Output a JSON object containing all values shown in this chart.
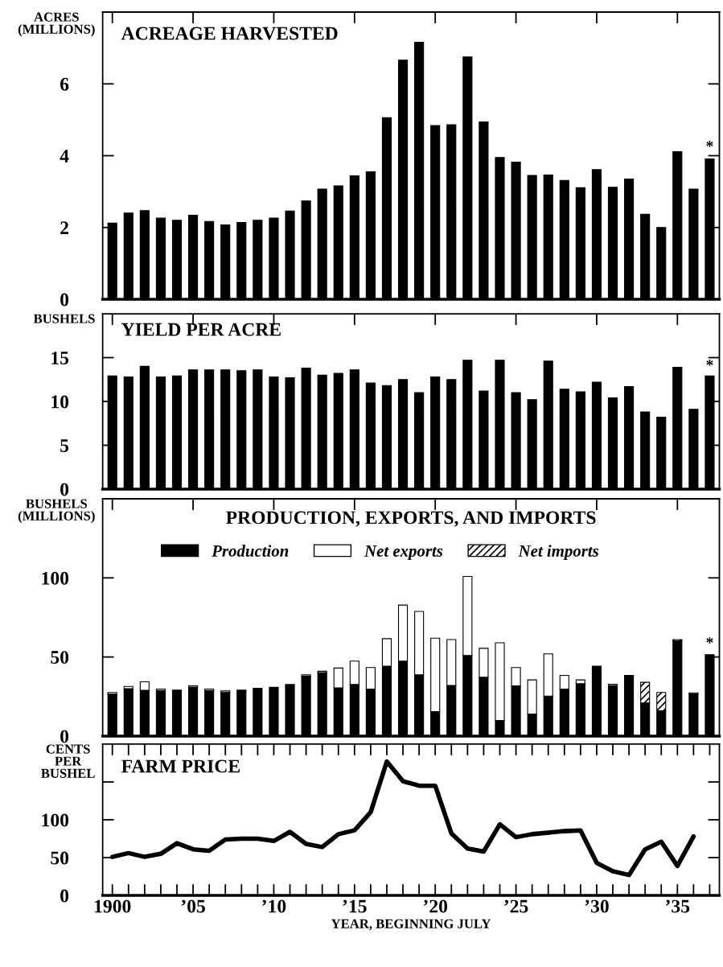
{
  "chart_data": [
    {
      "type": "bar",
      "title": "ACREAGE HARVESTED",
      "ylabel": "ACRES\n(MILLIONS)",
      "x": [
        1900,
        1901,
        1902,
        1903,
        1904,
        1905,
        1906,
        1907,
        1908,
        1909,
        1910,
        1911,
        1912,
        1913,
        1914,
        1915,
        1916,
        1917,
        1918,
        1919,
        1920,
        1921,
        1922,
        1923,
        1924,
        1925,
        1926,
        1927,
        1928,
        1929,
        1930,
        1931,
        1932,
        1933,
        1934,
        1935,
        1936,
        1937
      ],
      "series": [
        {
          "color": "#000000",
          "values": [
            2.12,
            2.4,
            2.47,
            2.26,
            2.2,
            2.34,
            2.17,
            2.07,
            2.14,
            2.2,
            2.26,
            2.46,
            2.74,
            3.07,
            3.16,
            3.44,
            3.55,
            5.06,
            6.66,
            7.16,
            4.84,
            4.86,
            6.75,
            4.94,
            3.95,
            3.82,
            3.45,
            3.46,
            3.31,
            3.11,
            3.61,
            3.12,
            3.35,
            2.37,
            2.0,
            4.11,
            3.07,
            3.91
          ]
        }
      ],
      "xlim": [
        1899.4,
        1937.6
      ],
      "xticks": [
        {
          "value": 1900,
          "label": null
        },
        {
          "value": 1905,
          "label": null
        },
        {
          "value": 1910,
          "label": null
        },
        {
          "value": 1915,
          "label": null
        },
        {
          "value": 1920,
          "label": null
        },
        {
          "value": 1925,
          "label": null
        },
        {
          "value": 1930,
          "label": null
        },
        {
          "value": 1935,
          "label": null
        }
      ],
      "ylim": [
        0,
        8
      ],
      "yticks": [
        0,
        2,
        4,
        6
      ],
      "tick_labels": "y",
      "grid": false,
      "legend": false,
      "annotations": [
        "*"
      ]
    },
    {
      "type": "bar",
      "title": "YIELD PER ACRE",
      "ylabel": "BUSHELS",
      "x": [
        1900,
        1901,
        1902,
        1903,
        1904,
        1905,
        1906,
        1907,
        1908,
        1909,
        1910,
        1911,
        1912,
        1913,
        1914,
        1915,
        1916,
        1917,
        1918,
        1919,
        1920,
        1921,
        1922,
        1923,
        1924,
        1925,
        1926,
        1927,
        1928,
        1929,
        1930,
        1931,
        1932,
        1933,
        1934,
        1935,
        1936,
        1937
      ],
      "series": [
        {
          "color": "#000000",
          "values": [
            12.9,
            12.8,
            14.0,
            12.8,
            12.9,
            13.6,
            13.6,
            13.6,
            13.5,
            13.6,
            12.8,
            12.7,
            13.8,
            13.0,
            13.2,
            13.6,
            12.1,
            11.8,
            12.5,
            11.0,
            12.8,
            12.5,
            14.7,
            11.2,
            14.7,
            11.0,
            10.2,
            14.6,
            11.4,
            11.1,
            12.2,
            10.4,
            11.7,
            8.8,
            8.2,
            13.9,
            9.1,
            12.9
          ]
        }
      ],
      "xlim": [
        1899.4,
        1937.6
      ],
      "xticks": [
        {
          "value": 1900,
          "label": null
        },
        {
          "value": 1905,
          "label": null
        },
        {
          "value": 1910,
          "label": null
        },
        {
          "value": 1915,
          "label": null
        },
        {
          "value": 1920,
          "label": null
        },
        {
          "value": 1925,
          "label": null
        },
        {
          "value": 1930,
          "label": null
        },
        {
          "value": 1935,
          "label": null
        }
      ],
      "ylim": [
        0,
        20
      ],
      "yticks": [
        0,
        5,
        10,
        15
      ],
      "tick_labels": "y",
      "grid": false,
      "legend": false,
      "annotations": [
        "*"
      ]
    },
    {
      "type": "bar",
      "stacked": true,
      "title": "PRODUCTION, EXPORTS, AND IMPORTS",
      "ylabel": "BUSHELS\n(MILLIONS)",
      "x": [
        1900,
        1901,
        1902,
        1903,
        1904,
        1905,
        1906,
        1907,
        1908,
        1909,
        1910,
        1911,
        1912,
        1913,
        1914,
        1915,
        1916,
        1917,
        1918,
        1919,
        1920,
        1921,
        1922,
        1923,
        1924,
        1925,
        1926,
        1927,
        1928,
        1929,
        1930,
        1931,
        1932,
        1933,
        1934,
        1935,
        1936,
        1937
      ],
      "series": [
        {
          "name": "Production",
          "color": "#000000",
          "values": [
            26.5,
            30,
            29,
            28.8,
            29.1,
            30.8,
            28.8,
            27.6,
            28.5,
            30.2,
            30.8,
            32,
            37.8,
            40.1,
            30.5,
            32.6,
            29.7,
            44.2,
            47.4,
            38.7,
            15.4,
            32,
            50.9,
            37.2,
            9.9,
            31.7,
            14,
            25.3,
            29.7,
            33.1,
            44.2,
            32,
            37.8,
            20.9,
            16,
            60.2,
            26.7,
            51.5
          ]
        },
        {
          "name": "Net exports",
          "color": "#ffffff",
          "values": [
            1.1,
            1.4,
            5.3,
            0.9,
            null,
            0.9,
            0.9,
            0.9,
            0.6,
            null,
            null,
            0.6,
            0.9,
            0.9,
            12.5,
            14.8,
            13.6,
            17.4,
            35.4,
            40.1,
            46.5,
            29,
            50,
            18.3,
            49.1,
            11.6,
            21.5,
            26.7,
            8.7,
            2.4,
            null,
            0.8,
            0.6,
            null,
            null,
            null,
            0.6,
            null
          ]
        },
        {
          "name": "Net imports",
          "color": "#000000",
          "values": [
            null,
            null,
            null,
            null,
            null,
            null,
            null,
            null,
            null,
            null,
            null,
            null,
            null,
            null,
            null,
            null,
            null,
            null,
            null,
            null,
            null,
            null,
            null,
            null,
            null,
            null,
            null,
            null,
            null,
            null,
            null,
            null,
            null,
            13.1,
            11.6,
            0.8,
            null,
            null
          ]
        }
      ],
      "xlim": [
        1899.4,
        1937.6
      ],
      "xticks": [
        {
          "value": 1900,
          "label": null
        },
        {
          "value": 1905,
          "label": null
        },
        {
          "value": 1910,
          "label": null
        },
        {
          "value": 1915,
          "label": null
        },
        {
          "value": 1920,
          "label": null
        },
        {
          "value": 1925,
          "label": null
        },
        {
          "value": 1930,
          "label": null
        },
        {
          "value": 1935,
          "label": null
        }
      ],
      "ylim": [
        0,
        150
      ],
      "yticks": [
        0,
        50,
        100
      ],
      "tick_labels": "y",
      "grid": false,
      "legend": "top",
      "annotations": [
        "*"
      ]
    },
    {
      "type": "line",
      "title": "FARM PRICE",
      "ylabel": "CENTS\nPER\nBUSHEL",
      "xlabel": "YEAR, BEGINNING JULY",
      "x": [
        1900,
        1901,
        1902,
        1903,
        1904,
        1905,
        1906,
        1907,
        1908,
        1909,
        1910,
        1911,
        1912,
        1913,
        1914,
        1915,
        1916,
        1917,
        1918,
        1919,
        1920,
        1921,
        1922,
        1923,
        1924,
        1925,
        1926,
        1927,
        1928,
        1929,
        1930,
        1931,
        1932,
        1933,
        1934,
        1935,
        1936
      ],
      "series": [
        {
          "color": "#000000",
          "values": [
            51,
            56,
            51,
            55,
            69,
            61,
            59,
            74,
            75,
            75,
            72,
            84,
            68,
            64,
            81,
            86,
            110,
            177,
            151,
            145,
            145,
            82,
            62,
            58,
            94,
            77,
            81,
            83,
            85,
            86,
            43,
            32,
            27,
            61,
            71,
            39,
            78
          ]
        }
      ],
      "xlim": [
        1899.4,
        1937.6
      ],
      "xticks": [
        {
          "value": 1900,
          "label": "1900"
        },
        {
          "value": 1901,
          "label": null
        },
        {
          "value": 1902,
          "label": null
        },
        {
          "value": 1903,
          "label": null
        },
        {
          "value": 1904,
          "label": null
        },
        {
          "value": 1905,
          "label": "’05"
        },
        {
          "value": 1906,
          "label": null
        },
        {
          "value": 1907,
          "label": null
        },
        {
          "value": 1908,
          "label": null
        },
        {
          "value": 1909,
          "label": null
        },
        {
          "value": 1910,
          "label": "’10"
        },
        {
          "value": 1911,
          "label": null
        },
        {
          "value": 1912,
          "label": null
        },
        {
          "value": 1913,
          "label": null
        },
        {
          "value": 1914,
          "label": null
        },
        {
          "value": 1915,
          "label": "’15"
        },
        {
          "value": 1916,
          "label": null
        },
        {
          "value": 1917,
          "label": null
        },
        {
          "value": 1918,
          "label": null
        },
        {
          "value": 1919,
          "label": null
        },
        {
          "value": 1920,
          "label": "’20"
        },
        {
          "value": 1921,
          "label": null
        },
        {
          "value": 1922,
          "label": null
        },
        {
          "value": 1923,
          "label": null
        },
        {
          "value": 1924,
          "label": null
        },
        {
          "value": 1925,
          "label": "’25"
        },
        {
          "value": 1926,
          "label": null
        },
        {
          "value": 1927,
          "label": null
        },
        {
          "value": 1928,
          "label": null
        },
        {
          "value": 1929,
          "label": null
        },
        {
          "value": 1930,
          "label": "’30"
        },
        {
          "value": 1931,
          "label": null
        },
        {
          "value": 1932,
          "label": null
        },
        {
          "value": 1933,
          "label": null
        },
        {
          "value": 1934,
          "label": null
        },
        {
          "value": 1935,
          "label": "’35"
        },
        {
          "value": 1936,
          "label": null
        },
        {
          "value": 1937,
          "label": null
        }
      ],
      "ylim": [
        0,
        200
      ],
      "yticks": [
        0,
        50,
        100,
        {
          "value": 150,
          "label": null
        }
      ],
      "grid": false,
      "legend": false,
      "marker": "none",
      "line_style": "solid"
    }
  ]
}
